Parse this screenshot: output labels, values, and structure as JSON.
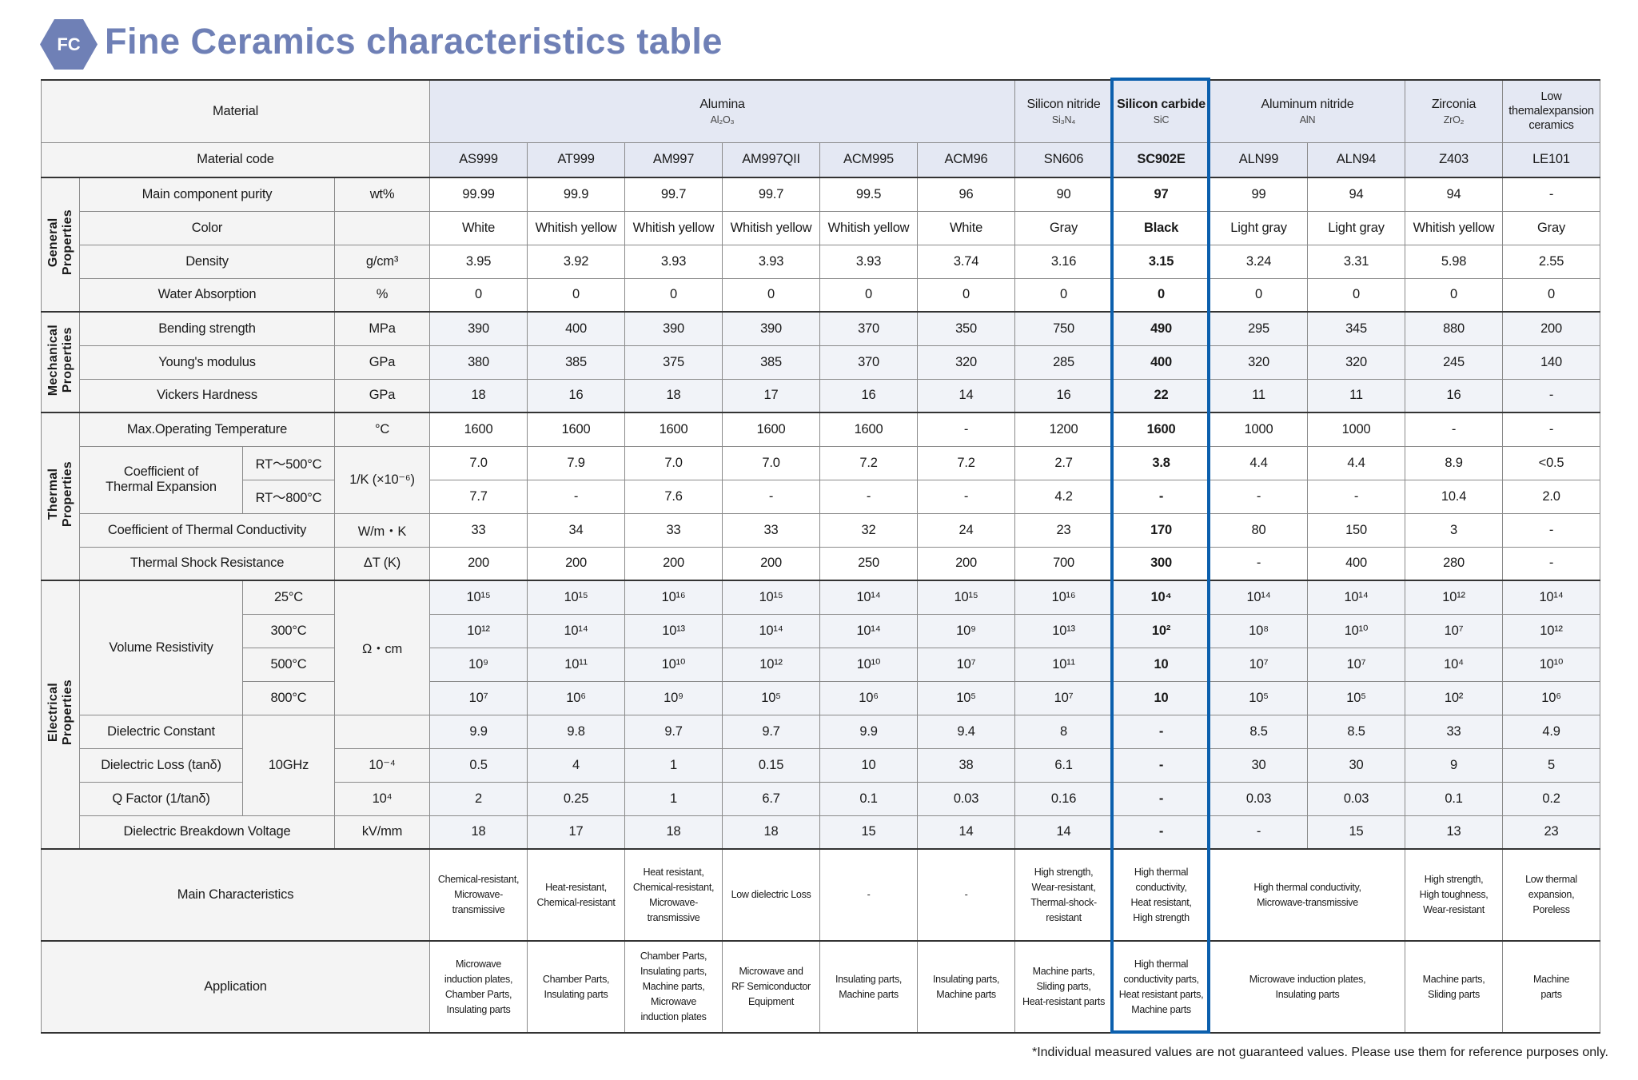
{
  "logo": {
    "text": "FC"
  },
  "title": "Fine Ceramics characteristics table",
  "header": {
    "material_label": "Material",
    "code_label": "Material code",
    "materials": [
      {
        "name": "Alumina",
        "formula": "Al₂O₃",
        "columns": 6
      },
      {
        "name": "Silicon nitride",
        "formula": "Si₃N₄",
        "columns": 1
      },
      {
        "name": "Silicon carbide",
        "formula": "SiC",
        "columns": 1,
        "highlight": true
      },
      {
        "name": "Aluminum nitride",
        "formula": "AlN",
        "columns": 2
      },
      {
        "name": "Zirconia",
        "formula": "ZrO₂",
        "columns": 1
      },
      {
        "name": "Low\nthemalexpansion\nceramics",
        "formula": "",
        "columns": 1
      }
    ],
    "codes": [
      "AS999",
      "AT999",
      "AM997",
      "AM997QII",
      "ACM995",
      "ACM96",
      "SN606",
      "SC902E",
      "ALN99",
      "ALN94",
      "Z403",
      "LE101"
    ],
    "highlight_code": "SC902E"
  },
  "highlight_color": "#0b5fad",
  "sections": [
    {
      "name": "General\nProperties",
      "shaded": false,
      "rows": [
        {
          "label": "Main component purity",
          "unit": "wt%",
          "values": [
            "99.99",
            "99.9",
            "99.7",
            "99.7",
            "99.5",
            "96",
            "90",
            "97",
            "99",
            "94",
            "94",
            "-"
          ]
        },
        {
          "label": "Color",
          "unit": "",
          "values": [
            "White",
            "Whitish yellow",
            "Whitish yellow",
            "Whitish yellow",
            "Whitish yellow",
            "White",
            "Gray",
            "Black",
            "Light gray",
            "Light gray",
            "Whitish yellow",
            "Gray"
          ]
        },
        {
          "label": "Density",
          "unit": "g/cm³",
          "values": [
            "3.95",
            "3.92",
            "3.93",
            "3.93",
            "3.93",
            "3.74",
            "3.16",
            "3.15",
            "3.24",
            "3.31",
            "5.98",
            "2.55"
          ]
        },
        {
          "label": "Water Absorption",
          "unit": "%",
          "values": [
            "0",
            "0",
            "0",
            "0",
            "0",
            "0",
            "0",
            "0",
            "0",
            "0",
            "0",
            "0"
          ]
        }
      ]
    },
    {
      "name": "Mechanical\nProperties",
      "shaded": true,
      "rows": [
        {
          "label": "Bending strength",
          "unit": "MPa",
          "values": [
            "390",
            "400",
            "390",
            "390",
            "370",
            "350",
            "750",
            "490",
            "295",
            "345",
            "880",
            "200"
          ]
        },
        {
          "label": "Young's modulus",
          "unit": "GPa",
          "values": [
            "380",
            "385",
            "375",
            "385",
            "370",
            "320",
            "285",
            "400",
            "320",
            "320",
            "245",
            "140"
          ]
        },
        {
          "label": "Vickers Hardness",
          "unit": "GPa",
          "values": [
            "18",
            "16",
            "18",
            "17",
            "16",
            "14",
            "16",
            "22",
            "11",
            "11",
            "16",
            "-"
          ]
        }
      ]
    },
    {
      "name": "Thermal\nProperties",
      "shaded": false,
      "rows": [
        {
          "label": "Max.Operating Temperature",
          "unit": "°C",
          "values": [
            "1600",
            "1600",
            "1600",
            "1600",
            "1600",
            "-",
            "1200",
            "1600",
            "1000",
            "1000",
            "-",
            "-"
          ]
        },
        {
          "label": "Coefficient of\nThermal Expansion",
          "label_rows": 2,
          "split": true,
          "sub": "RT～500°C",
          "unit": "1/K (×10⁻⁶)",
          "unit_rows": 2,
          "values": [
            "7.0",
            "7.9",
            "7.0",
            "7.0",
            "7.2",
            "7.2",
            "2.7",
            "3.8",
            "4.4",
            "4.4",
            "8.9",
            "<0.5"
          ]
        },
        {
          "sub": "RT～800°C",
          "values": [
            "7.7",
            "-",
            "7.6",
            "-",
            "-",
            "-",
            "4.2",
            "-",
            "-",
            "-",
            "10.4",
            "2.0"
          ]
        },
        {
          "label": "Coefficient of Thermal Conductivity",
          "unit": "W/m・K",
          "values": [
            "33",
            "34",
            "33",
            "33",
            "32",
            "24",
            "23",
            "170",
            "80",
            "150",
            "3",
            "-"
          ]
        },
        {
          "label": "Thermal Shock Resistance",
          "unit": "ΔT (K)",
          "values": [
            "200",
            "200",
            "200",
            "200",
            "250",
            "200",
            "700",
            "300",
            "-",
            "400",
            "280",
            "-"
          ]
        }
      ]
    },
    {
      "name": "Electrical\nProperties",
      "shaded": true,
      "rows": [
        {
          "label": "Volume Resistivity",
          "label_rows": 4,
          "split": true,
          "sub": "25°C",
          "unit": "Ω・cm",
          "unit_rows": 4,
          "values": [
            "10¹⁵",
            "10¹⁵",
            "10¹⁶",
            "10¹⁵",
            "10¹⁴",
            "10¹⁵",
            "10¹⁶",
            "10⁴",
            "10¹⁴",
            "10¹⁴",
            "10¹²",
            "10¹⁴"
          ]
        },
        {
          "sub": "300°C",
          "values": [
            "10¹²",
            "10¹⁴",
            "10¹³",
            "10¹⁴",
            "10¹⁴",
            "10⁹",
            "10¹³",
            "10²",
            "10⁸",
            "10¹⁰",
            "10⁷",
            "10¹²"
          ]
        },
        {
          "sub": "500°C",
          "values": [
            "10⁹",
            "10¹¹",
            "10¹⁰",
            "10¹²",
            "10¹⁰",
            "10⁷",
            "10¹¹",
            "10",
            "10⁷",
            "10⁷",
            "10⁴",
            "10¹⁰"
          ]
        },
        {
          "sub": "800°C",
          "values": [
            "10⁷",
            "10⁶",
            "10⁹",
            "10⁵",
            "10⁶",
            "10⁵",
            "10⁷",
            "10",
            "10⁵",
            "10⁵",
            "10²",
            "10⁶"
          ]
        },
        {
          "label": "Dielectric Constant",
          "split": true,
          "sub": "10GHz",
          "sub_rows": 3,
          "unit": "",
          "values": [
            "9.9",
            "9.8",
            "9.7",
            "9.7",
            "9.9",
            "9.4",
            "8",
            "-",
            "8.5",
            "8.5",
            "33",
            "4.9"
          ]
        },
        {
          "label": "Dielectric Loss (tanδ)",
          "split": true,
          "unit": "10⁻⁴",
          "values": [
            "0.5",
            "4",
            "1",
            "0.15",
            "10",
            "38",
            "6.1",
            "-",
            "30",
            "30",
            "9",
            "5"
          ]
        },
        {
          "label": "Q Factor (1/tanδ)",
          "split": true,
          "unit": "10⁴",
          "values": [
            "2",
            "0.25",
            "1",
            "6.7",
            "0.1",
            "0.03",
            "0.16",
            "-",
            "0.03",
            "0.03",
            "0.1",
            "0.2"
          ]
        },
        {
          "label": "Dielectric Breakdown Voltage",
          "unit": "kV/mm",
          "values": [
            "18",
            "17",
            "18",
            "18",
            "15",
            "14",
            "14",
            "-",
            "-",
            "15",
            "13",
            "23"
          ]
        }
      ]
    }
  ],
  "main_characteristics": {
    "label": "Main Characteristics",
    "values": [
      "Chemical-resistant,\nMicrowave-\ntransmissive",
      "Heat-resistant,\nChemical-resistant",
      "Heat resistant,\nChemical-resistant,\nMicrowave-\ntransmissive",
      "Low dielectric Loss",
      "-",
      "-",
      "High strength,\nWear-resistant,\nThermal-shock-\nresistant",
      "High thermal\nconductivity,\nHeat resistant,\nHigh strength",
      "High thermal conductivity,\nMicrowave-transmissive",
      "High strength,\nHigh toughness,\nWear-resistant",
      "Low thermal\nexpansion,\nPoreless"
    ]
  },
  "application": {
    "label": "Application",
    "values": [
      "Microwave\ninduction plates,\nChamber Parts,\nInsulating parts",
      "Chamber Parts,\nInsulating parts",
      "Chamber Parts,\nInsulating parts,\nMachine parts,\nMicrowave\ninduction plates",
      "Microwave and\nRF Semiconductor\nEquipment",
      "Insulating parts,\nMachine parts",
      "Insulating parts,\nMachine parts",
      "Machine parts,\nSliding parts,\nHeat-resistant parts",
      "High thermal\nconductivity parts,\nHeat resistant parts,\nMachine parts",
      "Microwave induction plates,\nInsulating parts",
      "Machine parts,\nSliding parts",
      "Machine\nparts"
    ]
  },
  "footnote": "*Individual measured values are not guaranteed values. Please use them for reference purposes only."
}
